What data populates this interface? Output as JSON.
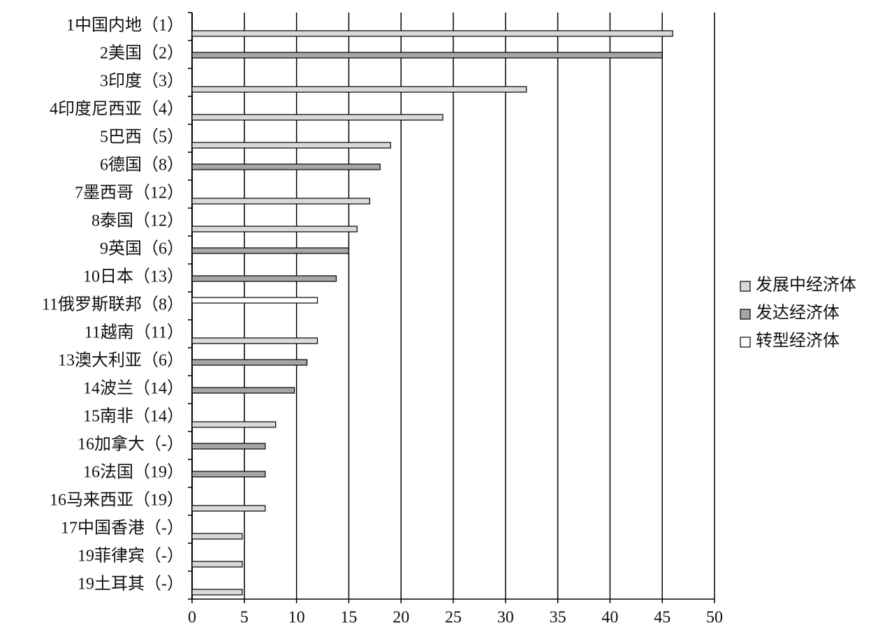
{
  "chart_data": {
    "type": "hbar",
    "categories": [
      "1中国内地（1）",
      "2美国（2）",
      "3印度（3）",
      "4印度尼西亚（4）",
      "5巴西（5）",
      "6德国（8）",
      "7墨西哥（12）",
      "8泰国（12）",
      "9英国（6）",
      "10日本（13）",
      "11俄罗斯联邦（8）",
      "11越南（11）",
      "13澳大利亚（6）",
      "14波兰（14）",
      "15南非（14）",
      "16加拿大（-）",
      "16法国（19）",
      "16马来西亚（19）",
      "17中国香港（-）",
      "19菲律宾（-）",
      "19土耳其（-）"
    ],
    "series": [
      {
        "name": "发展中经济体",
        "color": "#d9d9d9",
        "values": [
          46,
          null,
          32,
          24,
          19,
          null,
          17,
          15.8,
          null,
          null,
          null,
          12,
          null,
          null,
          8,
          null,
          null,
          7,
          4.8,
          4.8,
          4.8
        ]
      },
      {
        "name": "发达经济体",
        "color": "#a6a6a6",
        "values": [
          null,
          45,
          null,
          null,
          null,
          18,
          null,
          null,
          15,
          13.8,
          null,
          null,
          11,
          9.8,
          null,
          7,
          7,
          null,
          null,
          null,
          null
        ]
      },
      {
        "name": "转型经济体",
        "color": "#ffffff",
        "values": [
          null,
          null,
          null,
          null,
          null,
          null,
          null,
          null,
          null,
          null,
          12,
          null,
          null,
          null,
          null,
          null,
          null,
          null,
          null,
          null,
          null
        ]
      }
    ],
    "xlim": [
      0,
      50
    ],
    "xticks": [
      0,
      5,
      10,
      15,
      20,
      25,
      30,
      35,
      40,
      45,
      50
    ],
    "grid": true
  }
}
